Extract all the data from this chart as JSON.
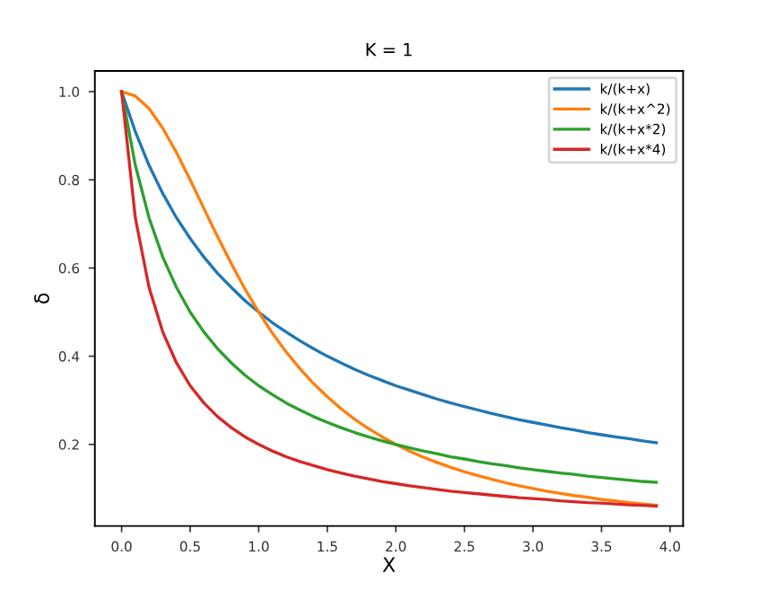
{
  "chart_data": {
    "type": "line",
    "title": "K = 1",
    "xlabel": "X",
    "ylabel": "δ",
    "x": [
      0,
      0.1,
      0.2,
      0.3,
      0.4,
      0.5,
      0.6,
      0.7,
      0.8,
      0.9,
      1.0,
      1.1,
      1.2,
      1.3,
      1.4,
      1.5,
      1.6,
      1.7,
      1.8,
      1.9,
      2.0,
      2.1,
      2.2,
      2.3,
      2.4,
      2.5,
      2.6,
      2.7,
      2.8,
      2.9,
      3.0,
      3.1,
      3.2,
      3.3,
      3.4,
      3.5,
      3.6,
      3.7,
      3.8,
      3.9
    ],
    "series": [
      {
        "name": "k/(k+x)",
        "color": "#1f77b4",
        "values": [
          1,
          0.909,
          0.833,
          0.769,
          0.714,
          0.667,
          0.625,
          0.588,
          0.556,
          0.526,
          0.5,
          0.476,
          0.455,
          0.435,
          0.417,
          0.4,
          0.385,
          0.37,
          0.357,
          0.345,
          0.333,
          0.323,
          0.313,
          0.303,
          0.294,
          0.286,
          0.278,
          0.27,
          0.263,
          0.256,
          0.25,
          0.244,
          0.238,
          0.233,
          0.227,
          0.222,
          0.217,
          0.213,
          0.208,
          0.204
        ]
      },
      {
        "name": "k/(k+x^2)",
        "color": "#ff7f0e",
        "values": [
          1,
          0.99,
          0.962,
          0.917,
          0.862,
          0.8,
          0.735,
          0.671,
          0.61,
          0.552,
          0.5,
          0.452,
          0.41,
          0.372,
          0.338,
          0.308,
          0.281,
          0.257,
          0.236,
          0.217,
          0.2,
          0.185,
          0.171,
          0.159,
          0.148,
          0.138,
          0.129,
          0.121,
          0.113,
          0.106,
          0.1,
          0.094,
          0.089,
          0.084,
          0.08,
          0.075,
          0.072,
          0.068,
          0.065,
          0.062
        ]
      },
      {
        "name": "k/(k+x*2)",
        "color": "#2ca02c",
        "values": [
          1,
          0.833,
          0.714,
          0.625,
          0.556,
          0.5,
          0.455,
          0.417,
          0.385,
          0.357,
          0.333,
          0.313,
          0.294,
          0.278,
          0.263,
          0.25,
          0.238,
          0.227,
          0.217,
          0.208,
          0.2,
          0.192,
          0.185,
          0.179,
          0.172,
          0.167,
          0.161,
          0.156,
          0.152,
          0.147,
          0.143,
          0.139,
          0.135,
          0.132,
          0.128,
          0.125,
          0.122,
          0.119,
          0.116,
          0.114
        ]
      },
      {
        "name": "k/(k+x*4)",
        "color": "#d62728",
        "values": [
          1,
          0.714,
          0.556,
          0.455,
          0.385,
          0.333,
          0.294,
          0.263,
          0.238,
          0.217,
          0.2,
          0.185,
          0.172,
          0.161,
          0.152,
          0.143,
          0.135,
          0.128,
          0.122,
          0.116,
          0.111,
          0.106,
          0.102,
          0.098,
          0.094,
          0.091,
          0.088,
          0.085,
          0.082,
          0.079,
          0.077,
          0.075,
          0.072,
          0.07,
          0.068,
          0.067,
          0.065,
          0.063,
          0.062,
          0.06
        ]
      }
    ],
    "xlim": [
      -0.195,
      4.095
    ],
    "ylim": [
      0.015,
      1.047
    ],
    "xticks": [
      {
        "value": 0,
        "label": "0.0"
      },
      0.5,
      {
        "value": 1,
        "label": "1.0"
      },
      1.5,
      {
        "value": 2,
        "label": "2.0"
      },
      2.5,
      {
        "value": 3,
        "label": "3.0"
      },
      3.5,
      {
        "value": 4,
        "label": "4.0"
      }
    ],
    "yticks": [
      0.2,
      0.4,
      0.6,
      0.8,
      {
        "value": 1,
        "label": "1.0"
      }
    ],
    "legend": "top right",
    "grid": false,
    "marker": "none",
    "line_style": "solid"
  }
}
